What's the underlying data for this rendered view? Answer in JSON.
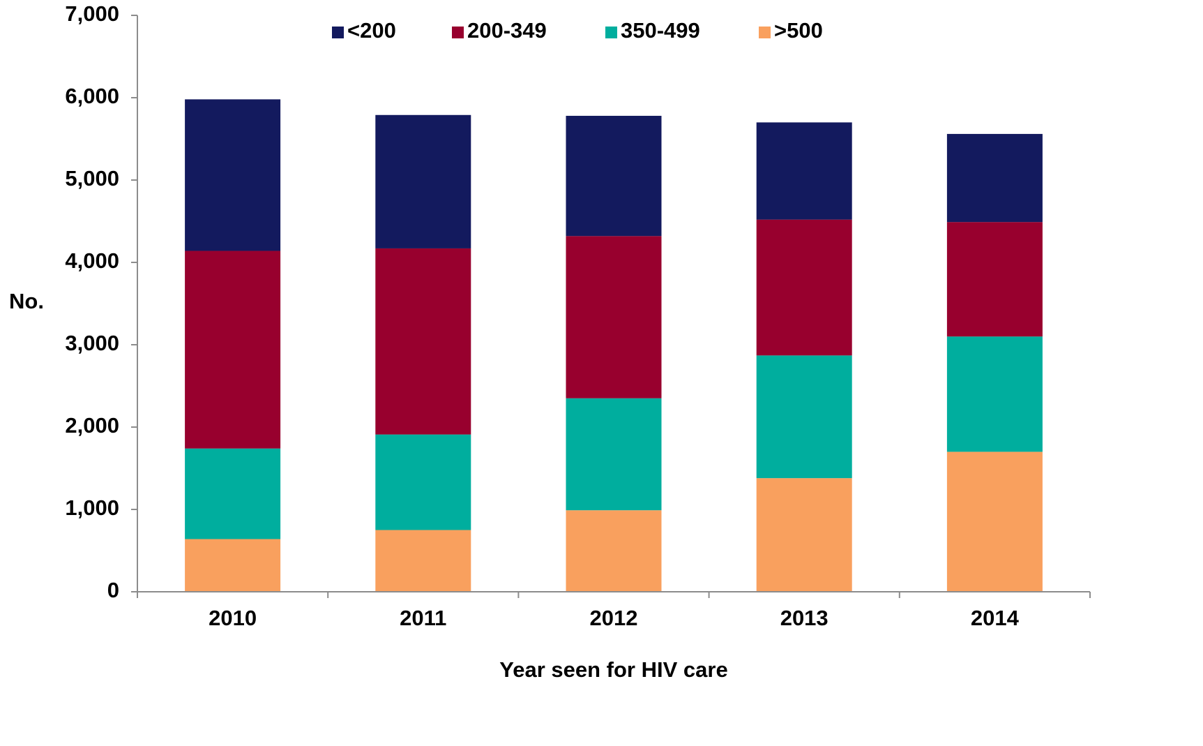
{
  "chart_data": {
    "type": "bar",
    "stacked": true,
    "title": "",
    "xlabel": "Year seen for HIV care",
    "ylabel": "No.",
    "categories": [
      "2010",
      "2011",
      "2012",
      "2013",
      "2014"
    ],
    "ylim": [
      0,
      7000
    ],
    "yticks": [
      0,
      1000,
      2000,
      3000,
      4000,
      5000,
      6000,
      7000
    ],
    "ytick_labels": [
      "0",
      "1,000",
      "2,000",
      "3,000",
      "4,000",
      "5,000",
      "6,000",
      "7,000"
    ],
    "grid": false,
    "legend_position": "top",
    "series": [
      {
        "name": ">500",
        "color": "#F9A05E",
        "values": [
          640,
          750,
          990,
          1380,
          1700
        ]
      },
      {
        "name": "350-499",
        "color": "#00AE9E",
        "values": [
          1100,
          1160,
          1360,
          1490,
          1400
        ]
      },
      {
        "name": "200-349",
        "color": "#98002E",
        "values": [
          2400,
          2260,
          1970,
          1650,
          1390
        ]
      },
      {
        "name": "<200",
        "color": "#131A5E",
        "values": [
          1840,
          1620,
          1460,
          1180,
          1070
        ]
      }
    ],
    "legend_order": [
      "<200",
      "200-349",
      "350-499",
      ">500"
    ]
  }
}
